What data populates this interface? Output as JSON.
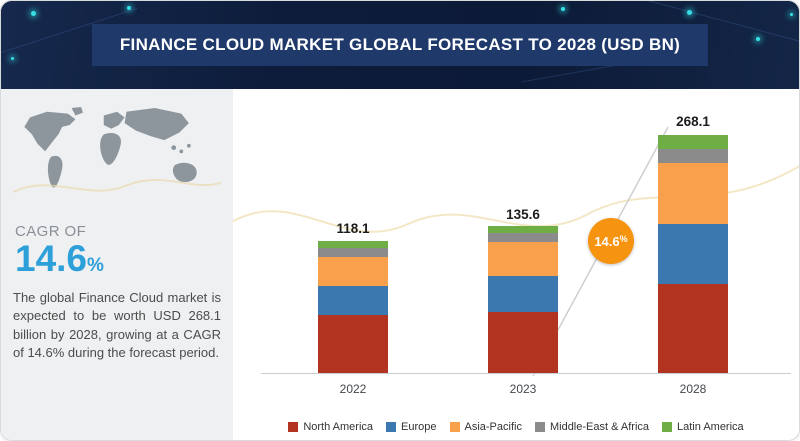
{
  "header": {
    "title": "FINANCE CLOUD MARKET GLOBAL FORECAST TO 2028 (USD BN)"
  },
  "sidebar": {
    "cagr_label": "CAGR OF",
    "cagr_value": "14.6",
    "cagr_unit": "%",
    "description": "The global Finance Cloud market is expected to be worth USD 268.1 billion by 2028, growing at a CAGR of 14.6% during the forecast period."
  },
  "chart": {
    "badge_value": "14.6",
    "badge_unit": "%"
  },
  "chart_data": {
    "type": "bar",
    "stacked": true,
    "title": "Finance Cloud Market Global Forecast to 2028 (USD BN)",
    "categories": [
      "2022",
      "2023",
      "2028"
    ],
    "totals": [
      118.1,
      135.6,
      268.1
    ],
    "series": [
      {
        "name": "North America",
        "color": "#b2331f",
        "values": [
          52.0,
          57.0,
          101.0
        ]
      },
      {
        "name": "Europe",
        "color": "#3b78b0",
        "values": [
          26.0,
          33.5,
          67.0
        ]
      },
      {
        "name": "Asia-Pacific",
        "color": "#f9a04c",
        "values": [
          26.0,
          31.0,
          68.0
        ]
      },
      {
        "name": "Middle-East & Africa",
        "color": "#8b8b8b",
        "values": [
          8.0,
          8.1,
          16.0
        ]
      },
      {
        "name": "Latin America",
        "color": "#6fae44",
        "values": [
          6.1,
          6.0,
          16.1
        ]
      }
    ],
    "annotation": "14.6%",
    "legend_position": "bottom",
    "grid": false,
    "ylabel": "",
    "xlabel": ""
  },
  "colors": {
    "accent_blue": "#2d9fd9",
    "badge_orange": "#f6930f",
    "header_navy": "#0d1c3a"
  }
}
